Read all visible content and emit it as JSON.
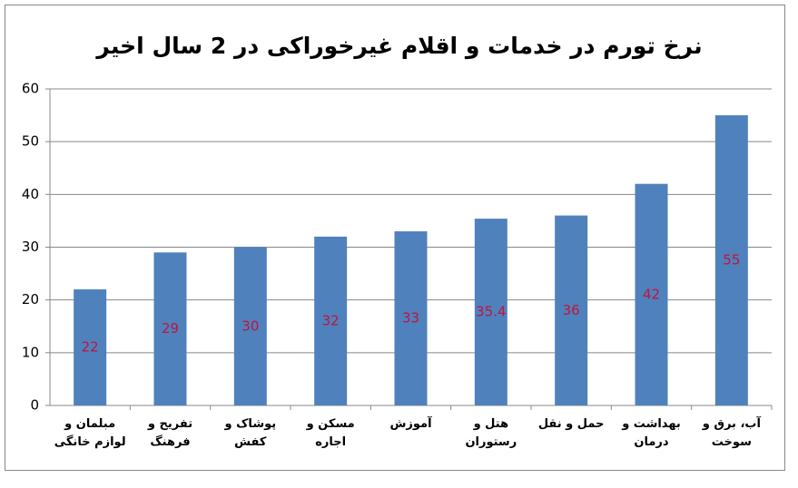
{
  "chart_data": {
    "type": "bar",
    "title": "نرخ تورم در خدمات و اقلام غیرخوراکی در 2 سال اخیر",
    "categories": [
      "مبلمان و لوازم خانگی",
      "تفریح و فرهنگ",
      "پوشاک و کفش",
      "مسکن و اجاره",
      "آموزش",
      "هتل و رستوران",
      "حمل و نقل",
      "بهداشت و درمان",
      "آب، برق و سوخت"
    ],
    "values": [
      22,
      29,
      30,
      32,
      33,
      35.4,
      36,
      42,
      55
    ],
    "color": "#4f81bd",
    "label_color": "#c0143c",
    "ylim": [
      0,
      60
    ],
    "yticks": [
      0,
      10,
      20,
      30,
      40,
      50,
      60
    ],
    "grid": true
  }
}
